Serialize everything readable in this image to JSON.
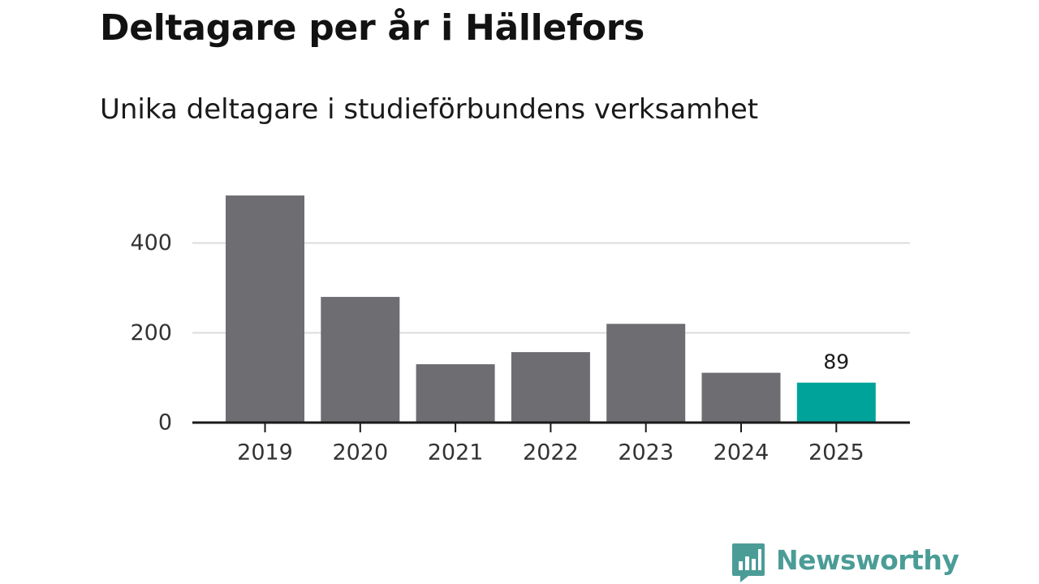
{
  "header": {
    "title": "Deltagare per år i Hällefors",
    "subtitle": "Unika deltagare i studieförbundens verksamhet"
  },
  "chart_data": {
    "type": "bar",
    "categories": [
      "2019",
      "2020",
      "2021",
      "2022",
      "2023",
      "2024",
      "2025"
    ],
    "values": [
      506,
      280,
      130,
      157,
      220,
      111,
      89
    ],
    "highlight_index": 6,
    "data_labels": {
      "6": "89"
    },
    "yticks": [
      0,
      200,
      400
    ],
    "ylim": [
      0,
      506
    ],
    "grid": true,
    "colors": {
      "bar": "#6e6d72",
      "highlight": "#00a39a",
      "grid": "#dcdcdc",
      "axis": "#1a1a1a",
      "tick_label": "#333333"
    }
  },
  "branding": {
    "name": "Newsworthy",
    "icon": "newsworthy-bars-icon",
    "color": "#4b9c97"
  }
}
